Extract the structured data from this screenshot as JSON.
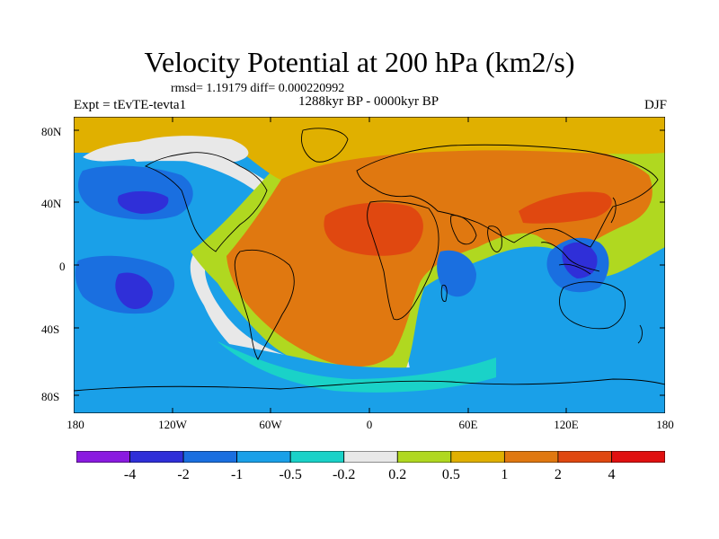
{
  "header": {
    "title": "Velocity Potential at 200 hPa (km2/s)",
    "stats": "rmsd= 1.19179 diff= 0.000220992",
    "experiment": "Expt = tEvTE-tevta1",
    "period": "1288kyr BP - 0000kyr BP",
    "season": "DJF"
  },
  "axes": {
    "lat_labels": [
      "80N",
      "40N",
      "0",
      "40S",
      "80S"
    ],
    "lon_labels": [
      "180",
      "120W",
      "60W",
      "0",
      "60E",
      "120E",
      "180"
    ]
  },
  "colorbar": {
    "colors": [
      "#8a1be0",
      "#2f2fd8",
      "#1a6fe0",
      "#1aa0e8",
      "#1ad2c8",
      "#e8e8e8",
      "#b0d820",
      "#e0b000",
      "#e07810",
      "#e04810",
      "#e01010"
    ],
    "labels": [
      "-4",
      "-2",
      "-1",
      "-0.5",
      "-0.2",
      "0.2",
      "0.5",
      "1",
      "2",
      "4"
    ]
  }
}
